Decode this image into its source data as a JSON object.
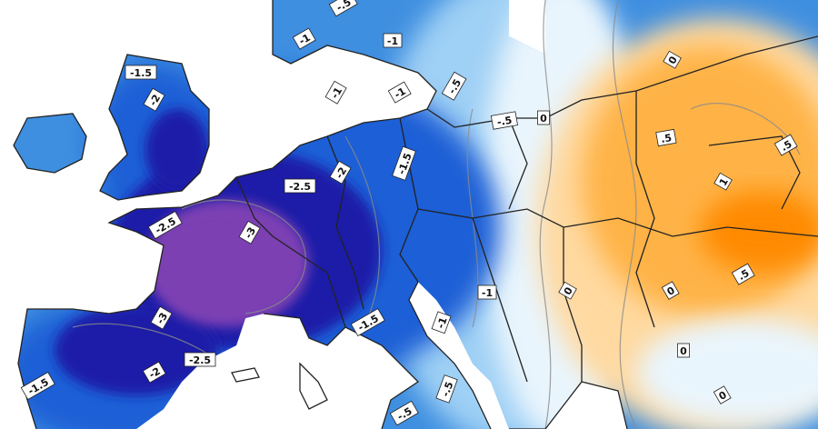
{
  "map": {
    "type": "temperature-anomaly-contour",
    "colors": {
      "purple": "#7b3fb3",
      "navy": "#1f1fa8",
      "blue_dark": "#1f5fd6",
      "blue_mid": "#3f8fe0",
      "blue_light": "#9fd0f5",
      "pale": "#e9f5fd",
      "orange_light": "#ffd9a0",
      "orange_mid": "#ffb347",
      "orange_dark": "#ff8a00"
    },
    "contour_labels": [
      {
        "id": "l1",
        "text": "-.5"
      },
      {
        "id": "l2",
        "text": "-1"
      },
      {
        "id": "l3",
        "text": "-1.5"
      },
      {
        "id": "l4",
        "text": "-2"
      },
      {
        "id": "l5",
        "text": "-1"
      },
      {
        "id": "l6",
        "text": "-.5"
      },
      {
        "id": "l7",
        "text": "-1"
      },
      {
        "id": "l8",
        "text": "-1"
      },
      {
        "id": "l9",
        "text": "-.5"
      },
      {
        "id": "l10",
        "text": "-1.5"
      },
      {
        "id": "l11",
        "text": "-2"
      },
      {
        "id": "l12",
        "text": "-2.5"
      },
      {
        "id": "l13",
        "text": "-2.5"
      },
      {
        "id": "l14",
        "text": "-3"
      },
      {
        "id": "l15",
        "text": "-3"
      },
      {
        "id": "l16",
        "text": "-2.5"
      },
      {
        "id": "l17",
        "text": "-2"
      },
      {
        "id": "l18",
        "text": "-1.5"
      },
      {
        "id": "l19",
        "text": "-1.5"
      },
      {
        "id": "l20",
        "text": "-1"
      },
      {
        "id": "l21",
        "text": "-1"
      },
      {
        "id": "l22",
        "text": "-.5"
      },
      {
        "id": "l23",
        "text": "-.5"
      },
      {
        "id": "l24",
        "text": "0"
      },
      {
        "id": "l25",
        "text": ".5"
      },
      {
        "id": "l26",
        "text": ".5"
      },
      {
        "id": "l27",
        "text": "1"
      },
      {
        "id": "l28",
        "text": "0"
      },
      {
        "id": "l29",
        "text": "0"
      },
      {
        "id": "l30",
        "text": ".5"
      },
      {
        "id": "l31",
        "text": "0"
      },
      {
        "id": "l32",
        "text": "0"
      },
      {
        "id": "l33",
        "text": "0"
      }
    ]
  }
}
